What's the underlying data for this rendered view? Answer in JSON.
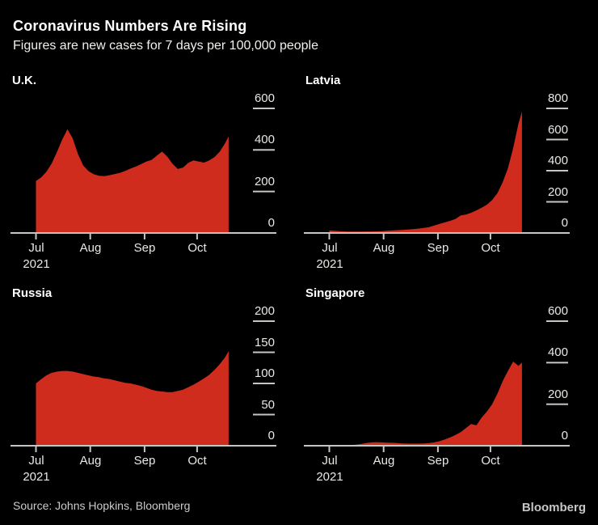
{
  "header": {
    "title": "Coronavirus Numbers Are Rising",
    "subtitle": "Figures are new cases for 7 days per 100,000 people"
  },
  "footer": {
    "source": "Source: Johns Hopkins, Bloomberg",
    "logo": "Bloomberg"
  },
  "colors": {
    "background": "#000000",
    "area": "#d02c1e",
    "axis": "#c7c5c2",
    "tick_text": "#eae8e4",
    "title_text": "#ffffff"
  },
  "chart_data": {
    "type": "area",
    "title": "Coronavirus Numbers Are Rising",
    "subtitle": "Figures are new cases for 7 days per 100,000 people",
    "x_unit": "days since Jul 1, 2021",
    "x_total_days": 110,
    "x_tick_days": [
      0,
      31,
      62,
      92
    ],
    "x_tick_labels": [
      "Jul",
      "Aug",
      "Sep",
      "Oct"
    ],
    "x_sub_label": "2021",
    "grid": false,
    "x_days": [
      0,
      3,
      6,
      9,
      12,
      15,
      18,
      21,
      24,
      27,
      30,
      33,
      36,
      39,
      42,
      45,
      48,
      51,
      54,
      57,
      60,
      63,
      66,
      69,
      72,
      75,
      78,
      81,
      84,
      87,
      90,
      93,
      96,
      99,
      102,
      105,
      108,
      110
    ],
    "charts": [
      {
        "title": "U.K.",
        "ylim": [
          0,
          600
        ],
        "yticks": [
          0,
          200,
          400,
          600
        ],
        "values": [
          250,
          268,
          295,
          335,
          390,
          450,
          500,
          455,
          380,
          325,
          298,
          283,
          276,
          274,
          278,
          284,
          290,
          299,
          310,
          320,
          331,
          344,
          352,
          372,
          392,
          368,
          333,
          308,
          315,
          338,
          350,
          344,
          339,
          350,
          366,
          392,
          432,
          465
        ]
      },
      {
        "title": "Latvia",
        "ylim": [
          0,
          800
        ],
        "yticks": [
          0,
          200,
          400,
          600,
          800
        ],
        "values": [
          16,
          14,
          12,
          10,
          9,
          9,
          9,
          10,
          10,
          11,
          12,
          14,
          16,
          18,
          20,
          22,
          25,
          28,
          32,
          38,
          48,
          58,
          68,
          78,
          90,
          112,
          118,
          130,
          145,
          162,
          182,
          212,
          255,
          325,
          415,
          545,
          700,
          780
        ]
      },
      {
        "title": "Russia",
        "ylim": [
          0,
          200
        ],
        "yticks": [
          0,
          50,
          100,
          150,
          200
        ],
        "values": [
          100,
          107,
          113,
          117,
          119,
          120,
          120,
          119,
          117,
          115,
          113,
          111,
          110,
          108,
          107,
          105,
          103,
          101,
          100,
          98,
          96,
          93,
          90,
          88,
          87,
          86,
          86,
          88,
          90,
          94,
          98,
          103,
          108,
          114,
          122,
          131,
          142,
          152
        ]
      },
      {
        "title": "Singapore",
        "ylim": [
          0,
          600
        ],
        "yticks": [
          0,
          200,
          400,
          600
        ],
        "values": [
          0,
          0,
          0,
          0,
          3,
          5,
          8,
          13,
          16,
          17,
          16,
          15,
          14,
          13,
          11,
          10,
          10,
          10,
          11,
          13,
          16,
          22,
          30,
          40,
          52,
          65,
          85,
          105,
          98,
          135,
          165,
          200,
          250,
          310,
          360,
          405,
          385,
          400
        ]
      }
    ]
  }
}
